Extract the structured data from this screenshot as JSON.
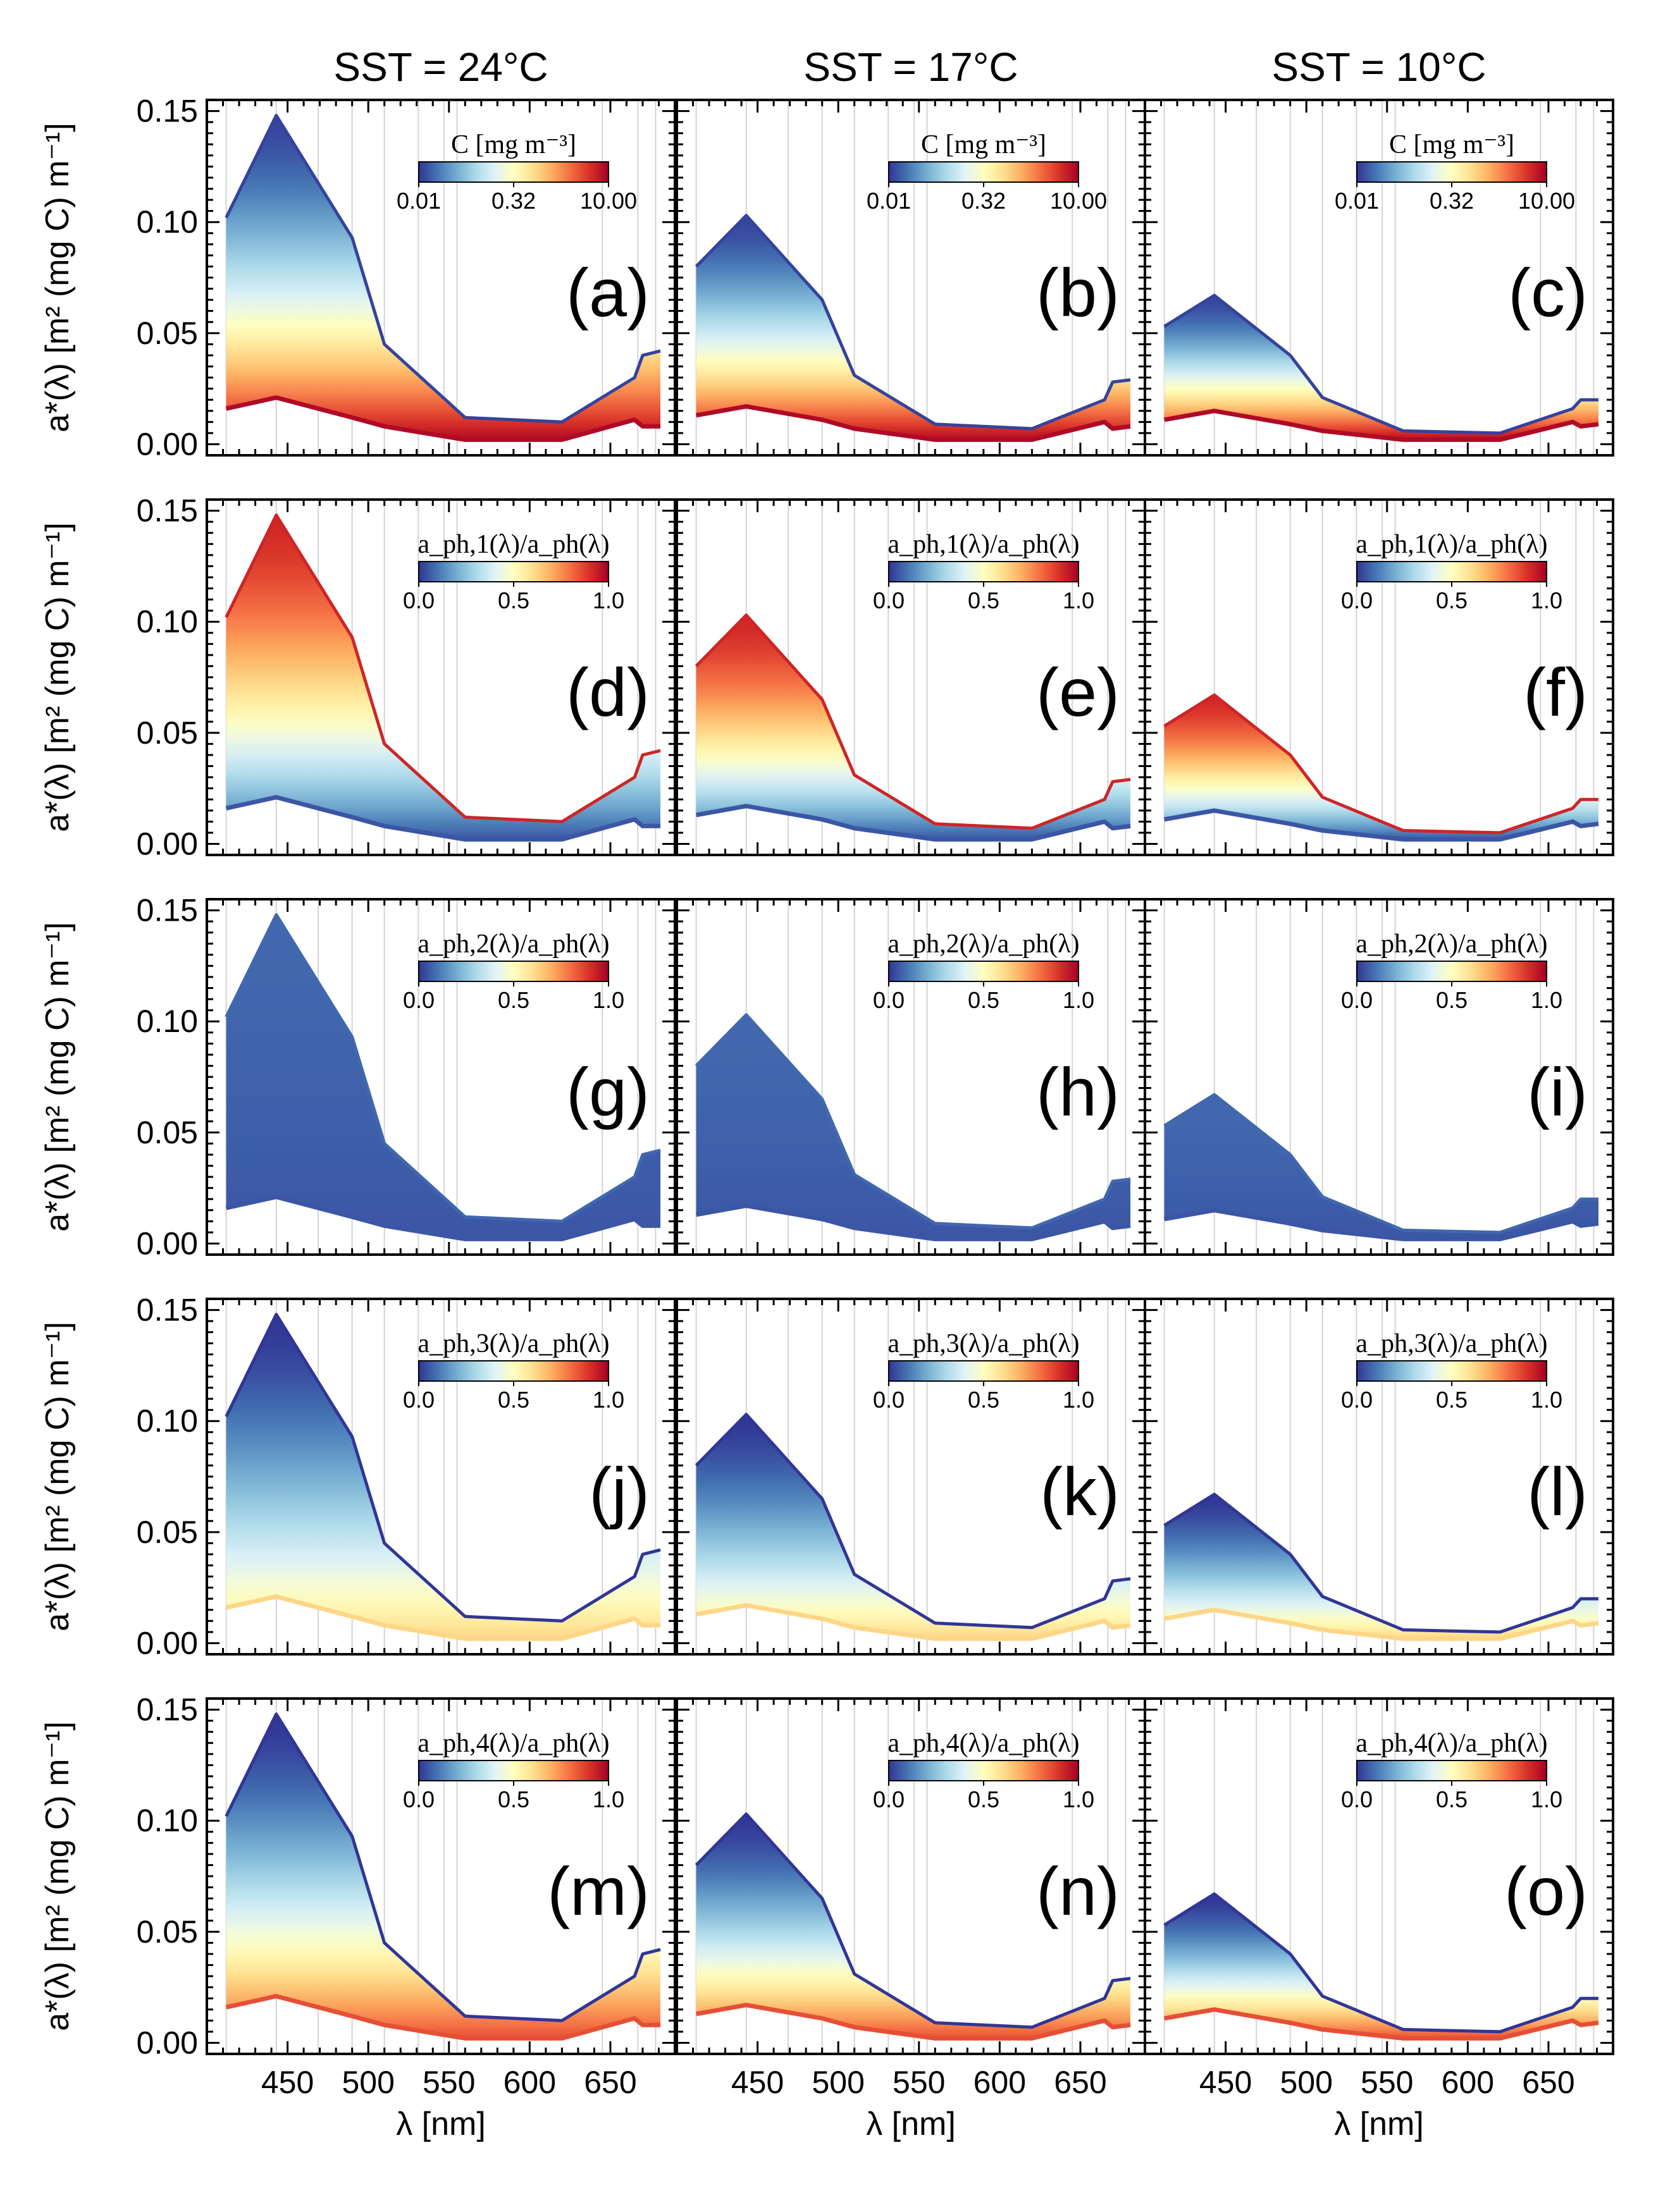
{
  "figure": {
    "column_titles": [
      "SST = 24°C",
      "SST = 17°C",
      "SST = 10°C"
    ],
    "ylabel": "a*(λ) [m² (mg C) m⁻¹]",
    "xlabel": "λ [nm]",
    "colorbar_titles": [
      "C [mg m⁻³]",
      "a_ph,1(λ)/a_ph(λ)",
      "a_ph,2(λ)/a_ph(λ)",
      "a_ph,3(λ)/a_ph(λ)",
      "a_ph,4(λ)/a_ph(λ)"
    ],
    "colorbar_ticks": [
      [
        "0.01",
        "0.32",
        "10.00"
      ],
      [
        "0.0",
        "0.5",
        "1.0"
      ],
      [
        "0.0",
        "0.5",
        "1.0"
      ],
      [
        "0.0",
        "0.5",
        "1.0"
      ],
      [
        "0.0",
        "0.5",
        "1.0"
      ]
    ],
    "panel_labels": [
      "(a)",
      "(b)",
      "(c)",
      "(d)",
      "(e)",
      "(f)",
      "(g)",
      "(h)",
      "(i)",
      "(j)",
      "(k)",
      "(l)",
      "(m)",
      "(n)",
      "(o)"
    ],
    "colormap": [
      "#313695",
      "#4575b4",
      "#74add1",
      "#abd9e9",
      "#e0f3f8",
      "#ffffbf",
      "#fee090",
      "#fdae61",
      "#f46d43",
      "#d73027",
      "#a50026"
    ],
    "wavelength_lines": [
      412,
      443,
      469,
      490,
      510,
      531,
      547,
      555,
      645,
      667,
      678
    ]
  },
  "chart_data": {
    "type": "area",
    "title": "",
    "xlabel": "λ [nm]",
    "ylabel": "a*(λ) [m² (mg C) m⁻¹]",
    "xlim": [
      400,
      690
    ],
    "ylim": [
      -0.005,
      0.155
    ],
    "xticks": [
      450,
      500,
      550,
      600,
      650
    ],
    "yticks": [
      0.0,
      0.05,
      0.1,
      0.15
    ],
    "wavelengths": [
      412,
      443,
      490,
      510,
      560,
      620,
      665,
      670,
      681
    ],
    "columns": [
      {
        "sst": "24°C",
        "low_chl_curve": [
          0.102,
          0.148,
          0.093,
          0.045,
          0.012,
          0.01,
          0.03,
          0.04,
          0.042
        ],
        "high_chl_curve": [
          0.016,
          0.021,
          0.012,
          0.008,
          0.002,
          0.002,
          0.011,
          0.008,
          0.008
        ]
      },
      {
        "sst": "17°C",
        "low_chl_curve": [
          0.08,
          0.103,
          0.065,
          0.031,
          0.009,
          0.007,
          0.02,
          0.028,
          0.029
        ],
        "high_chl_curve": [
          0.013,
          0.017,
          0.011,
          0.007,
          0.002,
          0.002,
          0.01,
          0.007,
          0.008
        ]
      },
      {
        "sst": "10°C",
        "low_chl_curve": [
          0.053,
          0.067,
          0.04,
          0.021,
          0.006,
          0.005,
          0.016,
          0.02,
          0.02
        ],
        "high_chl_curve": [
          0.011,
          0.015,
          0.009,
          0.006,
          0.002,
          0.002,
          0.01,
          0.008,
          0.009
        ]
      }
    ],
    "color_rows": [
      {
        "variable": "C [mg m⁻³]",
        "colorbar_range": [
          "0.01",
          "10.00"
        ],
        "fraction_at_top": 0.02,
        "fraction_at_bottom": 0.98
      },
      {
        "variable": "a_ph,1/a_ph",
        "colorbar_range": [
          0.0,
          1.0
        ],
        "fraction_at_top": 0.92,
        "fraction_at_bottom": 0.05
      },
      {
        "variable": "a_ph,2/a_ph",
        "colorbar_range": [
          0.0,
          1.0
        ],
        "fraction_at_top": 0.08,
        "fraction_at_bottom": 0.05
      },
      {
        "variable": "a_ph,3/a_ph",
        "colorbar_range": [
          0.0,
          1.0
        ],
        "fraction_at_top": 0.0,
        "fraction_at_bottom": 0.62
      },
      {
        "variable": "a_ph,4/a_ph",
        "colorbar_range": [
          0.0,
          1.0
        ],
        "fraction_at_top": 0.0,
        "fraction_at_bottom": 0.85
      }
    ]
  }
}
